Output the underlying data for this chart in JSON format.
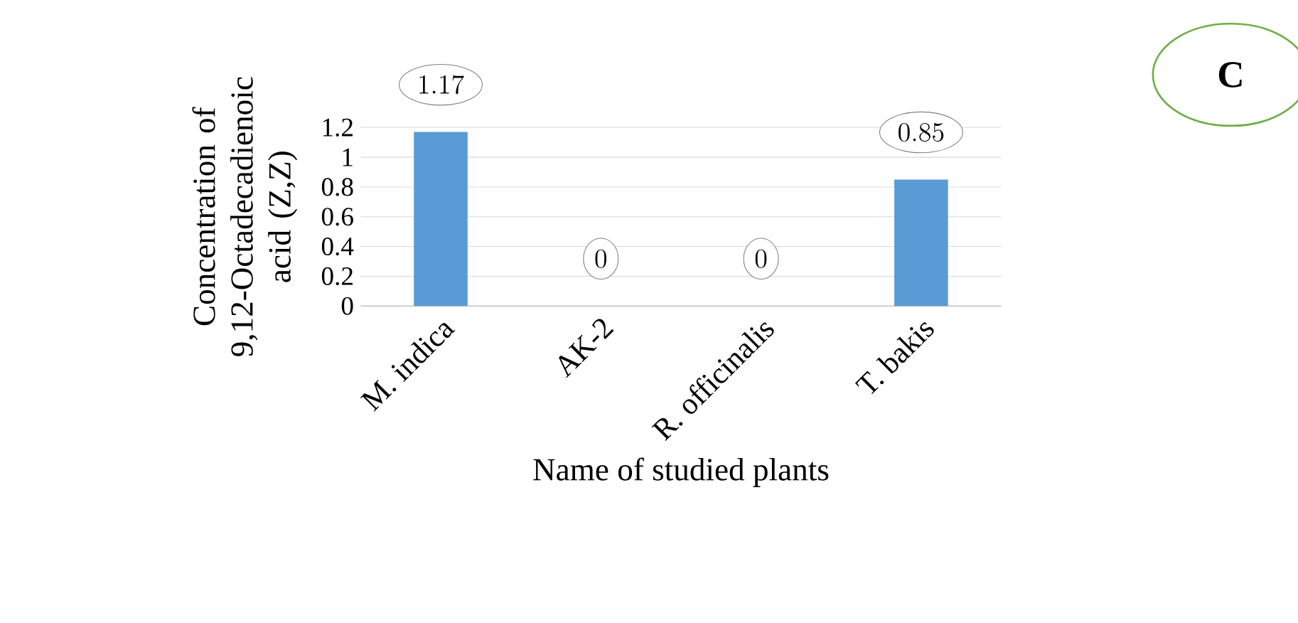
{
  "chart_data": {
    "type": "bar",
    "xlabel": "Name of studied plants",
    "ylabel": "Concentration of 9,12-Octadecadienoic acid (Z,Z)",
    "categories": [
      "M. indica",
      "AK-2",
      "R. officinalis",
      "T. bakis"
    ],
    "values": [
      1.17,
      0,
      0,
      0.85
    ],
    "color": "#5b9bd5",
    "ylim": [
      0,
      1.2
    ],
    "yticks": [
      0,
      0.2,
      0.4,
      0.6,
      0.8,
      1,
      1.2
    ],
    "grid": "y",
    "data_labels": true,
    "annotations": [
      "C"
    ]
  }
}
